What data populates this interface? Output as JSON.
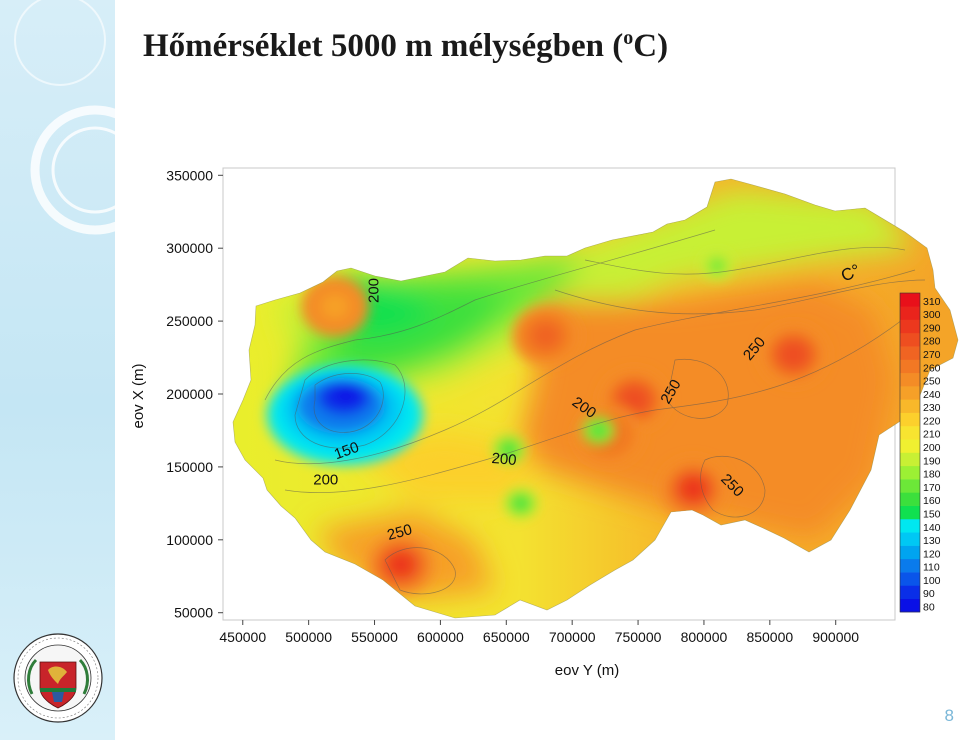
{
  "slide": {
    "title_main": "Hőmérséklet 5000 m mélységben (",
    "title_sup": "o",
    "title_end": "C)",
    "page_number": "8"
  },
  "chart_data": {
    "type": "heatmap",
    "title": "",
    "xlabel": "eov Y (m)",
    "ylabel": "eov X (m)",
    "xlim": [
      435000,
      945000
    ],
    "ylim": [
      45000,
      355000
    ],
    "x_ticks": [
      450000,
      500000,
      550000,
      600000,
      650000,
      700000,
      750000,
      800000,
      850000,
      900000
    ],
    "y_ticks": [
      50000,
      100000,
      150000,
      200000,
      250000,
      300000,
      350000
    ],
    "colorbar": {
      "unit": "C°",
      "levels": [
        80,
        90,
        100,
        110,
        120,
        130,
        140,
        150,
        160,
        170,
        180,
        190,
        200,
        210,
        220,
        230,
        240,
        250,
        260,
        270,
        280,
        290,
        300,
        310
      ],
      "colors": [
        "#0a10e6",
        "#0a2ee8",
        "#0a55ea",
        "#0a7bec",
        "#00a4f0",
        "#00c8f4",
        "#00e8f0",
        "#10e050",
        "#3ce03c",
        "#6ce838",
        "#9cf034",
        "#c8f034",
        "#f0f030",
        "#f8e430",
        "#fcd02c",
        "#f8b82a",
        "#f6a028",
        "#f48c26",
        "#f27824",
        "#f06422",
        "#ee4e20",
        "#ec381e",
        "#ea241c",
        "#e8101a"
      ]
    },
    "hot_spots": [
      {
        "x": 570000,
        "y": 83000,
        "value": 290
      },
      {
        "x": 792000,
        "y": 135000,
        "value": 295
      },
      {
        "x": 747000,
        "y": 196000,
        "value": 285
      },
      {
        "x": 868000,
        "y": 227000,
        "value": 285
      },
      {
        "x": 680000,
        "y": 240000,
        "value": 275
      },
      {
        "x": 728000,
        "y": 172000,
        "value": 265
      },
      {
        "x": 520000,
        "y": 260000,
        "value": 245
      }
    ],
    "cold_spots": [
      {
        "x": 547000,
        "y": 206000,
        "value": 85
      },
      {
        "x": 652000,
        "y": 162000,
        "value": 165
      },
      {
        "x": 661000,
        "y": 125000,
        "value": 165
      },
      {
        "x": 810000,
        "y": 288000,
        "value": 170
      },
      {
        "x": 720000,
        "y": 175000,
        "value": 165
      }
    ],
    "contour_labels": [
      {
        "text": "200",
        "x": 553000,
        "y": 271000,
        "angle": -90
      },
      {
        "text": "150",
        "x": 530000,
        "y": 158000,
        "angle": -20
      },
      {
        "text": "200",
        "x": 513000,
        "y": 138000,
        "angle": 0
      },
      {
        "text": "200",
        "x": 648000,
        "y": 152000,
        "angle": 5
      },
      {
        "text": "250",
        "x": 570000,
        "y": 102000,
        "angle": -15
      },
      {
        "text": "200",
        "x": 707000,
        "y": 188000,
        "angle": 35
      },
      {
        "text": "250",
        "x": 778000,
        "y": 200000,
        "angle": -60
      },
      {
        "text": "250",
        "x": 841000,
        "y": 229000,
        "angle": -50
      },
      {
        "text": "250",
        "x": 819000,
        "y": 135000,
        "angle": 45
      }
    ]
  }
}
